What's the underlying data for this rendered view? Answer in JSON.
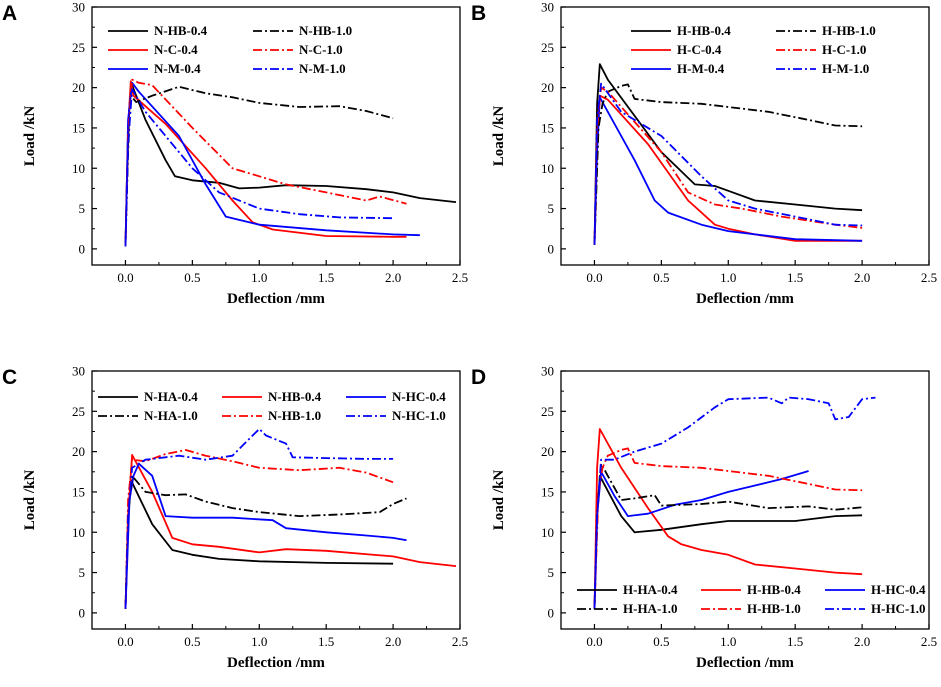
{
  "figure": {
    "panels": [
      "A",
      "B",
      "C",
      "D"
    ]
  },
  "chart_data": [
    {
      "panel": "A",
      "type": "line",
      "xlabel": "Deflection /mm",
      "ylabel": "Load /kN",
      "xlim": [
        -0.25,
        2.5
      ],
      "ylim": [
        -2,
        30
      ],
      "xticks": [
        "0.0",
        "0.5",
        "1.0",
        "1.5",
        "2.0",
        "2.5"
      ],
      "yticks": [
        "0",
        "5",
        "10",
        "15",
        "20",
        "25",
        "30"
      ],
      "legend_position": "top-left",
      "series": [
        {
          "name": "N-HB-0.4",
          "color": "#000000",
          "dash": "solid",
          "x": [
            0,
            0.01,
            0.03,
            0.05,
            0.15,
            0.3,
            0.37,
            0.5,
            0.7,
            0.85,
            1.0,
            1.2,
            1.5,
            1.8,
            2.0,
            2.2,
            2.47
          ],
          "y": [
            0.5,
            8,
            18,
            20.3,
            16,
            11,
            9,
            8.5,
            8.2,
            7.5,
            7.6,
            7.9,
            7.8,
            7.4,
            7.0,
            6.3,
            5.8
          ]
        },
        {
          "name": "N-C-0.4",
          "color": "#ff0000",
          "dash": "solid",
          "x": [
            0,
            0.02,
            0.04,
            0.06,
            0.3,
            0.6,
            0.8,
            0.95,
            1.1,
            1.5,
            2.0,
            2.1
          ],
          "y": [
            0.5,
            15,
            20.8,
            19,
            15.5,
            10,
            6,
            3.3,
            2.4,
            1.6,
            1.5,
            1.5
          ]
        },
        {
          "name": "N-M-0.4",
          "color": "#0000ff",
          "dash": "solid",
          "x": [
            0,
            0.02,
            0.05,
            0.1,
            0.4,
            0.6,
            0.75,
            1.0,
            1.5,
            2.0,
            2.2
          ],
          "y": [
            0.3,
            16,
            20.6,
            19.5,
            14,
            8,
            4,
            3,
            2.3,
            1.8,
            1.7
          ]
        },
        {
          "name": "N-HB-1.0",
          "color": "#000000",
          "dash": "dashdot",
          "x": [
            0,
            0.02,
            0.04,
            0.08,
            0.2,
            0.4,
            0.6,
            0.8,
            1.0,
            1.3,
            1.6,
            1.8,
            2.0
          ],
          "y": [
            0.5,
            12,
            19,
            18.2,
            19,
            20.1,
            19.3,
            18.8,
            18.1,
            17.6,
            17.7,
            17.1,
            16.2
          ]
        },
        {
          "name": "N-C-1.0",
          "color": "#ff0000",
          "dash": "dashdot",
          "x": [
            0,
            0.02,
            0.05,
            0.1,
            0.2,
            0.5,
            0.8,
            1.0,
            1.2,
            1.5,
            1.8,
            1.9,
            2.1
          ],
          "y": [
            0.5,
            14,
            21,
            20.6,
            20.3,
            15,
            10,
            9,
            8,
            7,
            6,
            6.5,
            5.6
          ]
        },
        {
          "name": "N-M-1.0",
          "color": "#0000ff",
          "dash": "dashdot",
          "x": [
            0,
            0.02,
            0.05,
            0.15,
            0.3,
            0.5,
            0.7,
            1.0,
            1.3,
            1.6,
            2.0
          ],
          "y": [
            0.5,
            13,
            19.8,
            17,
            14,
            10,
            7,
            5,
            4.3,
            3.9,
            3.8
          ]
        }
      ]
    },
    {
      "panel": "B",
      "type": "line",
      "xlabel": "Deflection /mm",
      "ylabel": "Load /kN",
      "xlim": [
        -0.25,
        2.5
      ],
      "ylim": [
        -2,
        30
      ],
      "xticks": [
        "0.0",
        "0.5",
        "1.0",
        "1.5",
        "2.0",
        "2.5"
      ],
      "yticks": [
        "0",
        "5",
        "10",
        "15",
        "20",
        "25",
        "30"
      ],
      "legend_position": "top-right",
      "series": [
        {
          "name": "H-HB-0.4",
          "color": "#000000",
          "dash": "solid",
          "x": [
            0,
            0.02,
            0.04,
            0.1,
            0.5,
            0.75,
            0.9,
            1.0,
            1.2,
            1.5,
            1.8,
            2.0
          ],
          "y": [
            0.5,
            18,
            22.9,
            21,
            12,
            8,
            7.8,
            7.2,
            6,
            5.5,
            5,
            4.8
          ]
        },
        {
          "name": "H-C-0.4",
          "color": "#ff0000",
          "dash": "solid",
          "x": [
            0,
            0.02,
            0.04,
            0.1,
            0.4,
            0.7,
            0.9,
            1.0,
            1.2,
            1.5,
            2.0
          ],
          "y": [
            0.5,
            14,
            19,
            18.5,
            13,
            6,
            3,
            2.5,
            1.8,
            1,
            1
          ]
        },
        {
          "name": "H-M-0.4",
          "color": "#0000ff",
          "dash": "solid",
          "x": [
            0,
            0.02,
            0.04,
            0.3,
            0.45,
            0.55,
            0.8,
            1.0,
            1.5,
            2.0
          ],
          "y": [
            0.5,
            12,
            18.8,
            11,
            6,
            4.5,
            3,
            2.2,
            1.2,
            1
          ]
        },
        {
          "name": "H-HB-1.0",
          "color": "#000000",
          "dash": "dashdot",
          "x": [
            0,
            0.03,
            0.06,
            0.1,
            0.2,
            0.25,
            0.3,
            0.5,
            0.8,
            1.0,
            1.3,
            1.6,
            1.8,
            2.0
          ],
          "y": [
            0.5,
            15,
            18,
            19.5,
            20.2,
            20.4,
            18.6,
            18.2,
            18,
            17.6,
            17,
            16,
            15.3,
            15.2
          ]
        },
        {
          "name": "H-C-1.0",
          "color": "#ff0000",
          "dash": "dashdot",
          "x": [
            0,
            0.02,
            0.05,
            0.1,
            0.5,
            0.7,
            0.9,
            1.1,
            1.4,
            1.8,
            2.0
          ],
          "y": [
            0.5,
            15,
            20,
            19.5,
            12,
            7,
            5.5,
            5,
            4,
            3,
            2.6
          ]
        },
        {
          "name": "H-M-1.0",
          "color": "#0000ff",
          "dash": "dashdot",
          "x": [
            0,
            0.02,
            0.05,
            0.2,
            0.5,
            0.8,
            1.0,
            1.2,
            1.5,
            1.8,
            2.0
          ],
          "y": [
            0.5,
            16,
            20.5,
            17,
            14,
            9,
            6,
            5,
            4,
            3,
            2.9
          ]
        }
      ]
    },
    {
      "panel": "C",
      "type": "line",
      "xlabel": "Deflection /mm",
      "ylabel": "Load /kN",
      "xlim": [
        -0.25,
        2.5
      ],
      "ylim": [
        -2,
        30
      ],
      "xticks": [
        "0.0",
        "0.5",
        "1.0",
        "1.5",
        "2.0",
        "2.5"
      ],
      "yticks": [
        "0",
        "5",
        "10",
        "15",
        "20",
        "25",
        "30"
      ],
      "legend_position": "top-left",
      "series": [
        {
          "name": "N-HA-0.4",
          "color": "#000000",
          "dash": "solid",
          "x": [
            0,
            0.02,
            0.04,
            0.2,
            0.35,
            0.5,
            0.7,
            1.0,
            1.5,
            2.0
          ],
          "y": [
            0.5,
            12,
            16.5,
            11,
            7.8,
            7.2,
            6.7,
            6.4,
            6.2,
            6.1
          ]
        },
        {
          "name": "N-HB-0.4",
          "color": "#ff0000",
          "dash": "solid",
          "x": [
            0,
            0.02,
            0.05,
            0.2,
            0.35,
            0.5,
            0.7,
            1.0,
            1.2,
            1.5,
            2.0,
            2.2,
            2.47
          ],
          "y": [
            0.5,
            12,
            19.6,
            15,
            9.3,
            8.5,
            8.2,
            7.5,
            7.9,
            7.7,
            7.0,
            6.3,
            5.8
          ]
        },
        {
          "name": "N-HC-0.4",
          "color": "#0000ff",
          "dash": "solid",
          "x": [
            0,
            0.03,
            0.06,
            0.1,
            0.2,
            0.3,
            0.5,
            0.8,
            1.1,
            1.2,
            1.5,
            1.8,
            2.0,
            2.1
          ],
          "y": [
            0.5,
            14,
            17,
            18.5,
            17,
            12,
            11.8,
            11.8,
            11.5,
            10.5,
            10,
            9.6,
            9.3,
            9
          ]
        },
        {
          "name": "N-HA-1.0",
          "color": "#000000",
          "dash": "dashdot",
          "x": [
            0,
            0.02,
            0.05,
            0.15,
            0.3,
            0.45,
            0.6,
            0.8,
            1.0,
            1.3,
            1.6,
            1.9,
            2.0,
            2.1
          ],
          "y": [
            0.5,
            12,
            17,
            15,
            14.6,
            14.7,
            13.8,
            13,
            12.5,
            12,
            12.2,
            12.5,
            13.5,
            14.2
          ]
        },
        {
          "name": "N-HB-1.0",
          "color": "#ff0000",
          "dash": "dashdot",
          "x": [
            0,
            0.02,
            0.05,
            0.15,
            0.3,
            0.45,
            0.6,
            0.8,
            1.0,
            1.3,
            1.6,
            1.8,
            2.0
          ],
          "y": [
            0.5,
            14,
            19,
            18.8,
            19.7,
            20.2,
            19.5,
            18.8,
            18,
            17.7,
            18,
            17.4,
            16.2
          ]
        },
        {
          "name": "N-HC-1.0",
          "color": "#0000ff",
          "dash": "dashdot",
          "x": [
            0,
            0.02,
            0.05,
            0.15,
            0.4,
            0.6,
            0.8,
            0.95,
            1.0,
            1.05,
            1.2,
            1.25,
            1.5,
            1.8,
            2.0
          ],
          "y": [
            0.5,
            12,
            18,
            19,
            19.5,
            19,
            19.5,
            22,
            22.8,
            22,
            21,
            19.3,
            19.2,
            19.1,
            19.1
          ]
        }
      ]
    },
    {
      "panel": "D",
      "type": "line",
      "xlabel": "Deflection /mm",
      "ylabel": "Load /kN",
      "xlim": [
        -0.25,
        2.5
      ],
      "ylim": [
        -2,
        30
      ],
      "xticks": [
        "0.0",
        "0.5",
        "1.0",
        "1.5",
        "2.0",
        "2.5"
      ],
      "yticks": [
        "0",
        "5",
        "10",
        "15",
        "20",
        "25",
        "30"
      ],
      "legend_position": "bottom",
      "series": [
        {
          "name": "H-HA-0.4",
          "color": "#000000",
          "dash": "solid",
          "x": [
            0,
            0.02,
            0.04,
            0.2,
            0.3,
            0.5,
            0.8,
            1.0,
            1.5,
            1.8,
            2.0
          ],
          "y": [
            0.5,
            12,
            17,
            12,
            10,
            10.3,
            11,
            11.4,
            11.4,
            12,
            12.1
          ]
        },
        {
          "name": "H-HB-0.4",
          "color": "#ff0000",
          "dash": "solid",
          "x": [
            0,
            0.02,
            0.04,
            0.2,
            0.4,
            0.55,
            0.65,
            0.8,
            1.0,
            1.2,
            1.5,
            1.8,
            2.0
          ],
          "y": [
            0.5,
            18,
            22.8,
            18,
            13,
            9.5,
            8.5,
            7.8,
            7.2,
            6,
            5.5,
            5,
            4.8
          ]
        },
        {
          "name": "H-HC-0.4",
          "color": "#0000ff",
          "dash": "solid",
          "x": [
            0,
            0.02,
            0.05,
            0.15,
            0.25,
            0.4,
            0.6,
            0.8,
            1.0,
            1.2,
            1.4,
            1.6
          ],
          "y": [
            0.5,
            12,
            17.5,
            14.5,
            12,
            12.3,
            13.4,
            14,
            15,
            15.8,
            16.6,
            17.6
          ]
        },
        {
          "name": "H-HA-1.0",
          "color": "#000000",
          "dash": "dashdot",
          "x": [
            0,
            0.02,
            0.05,
            0.1,
            0.2,
            0.3,
            0.45,
            0.5,
            0.8,
            1.0,
            1.3,
            1.6,
            1.8,
            2.0
          ],
          "y": [
            0.5,
            12,
            18.5,
            17,
            14,
            14.2,
            14.6,
            13.3,
            13.5,
            13.8,
            13,
            13.2,
            12.8,
            13.1
          ]
        },
        {
          "name": "H-HB-1.0",
          "color": "#ff0000",
          "dash": "dashdot",
          "x": [
            0,
            0.03,
            0.06,
            0.1,
            0.2,
            0.25,
            0.3,
            0.5,
            0.8,
            1.0,
            1.3,
            1.6,
            1.8,
            2.0
          ],
          "y": [
            0.5,
            15,
            18,
            19.5,
            20.2,
            20.4,
            18.6,
            18.2,
            18,
            17.6,
            17,
            16,
            15.3,
            15.2
          ]
        },
        {
          "name": "H-HC-1.0",
          "color": "#0000ff",
          "dash": "dashdot",
          "x": [
            0,
            0.02,
            0.05,
            0.15,
            0.3,
            0.5,
            0.7,
            0.9,
            1.0,
            1.3,
            1.4,
            1.45,
            1.6,
            1.75,
            1.8,
            1.9,
            2.0,
            2.1
          ],
          "y": [
            0.5,
            12,
            19,
            19,
            20,
            21,
            23,
            25.5,
            26.5,
            26.7,
            26,
            26.7,
            26.5,
            26,
            24,
            24.3,
            26.5,
            26.7
          ]
        }
      ]
    }
  ]
}
